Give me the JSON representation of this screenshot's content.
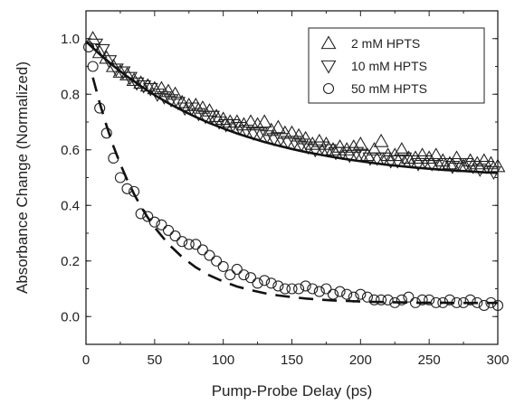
{
  "chart_data": {
    "type": "scatter",
    "title": "",
    "xlabel": "Pump-Probe Delay (ps)",
    "ylabel": "Absorbance Change (Normalized)",
    "xlim": [
      0,
      300
    ],
    "ylim": [
      -0.1,
      1.1
    ],
    "xticks": [
      0,
      50,
      100,
      150,
      200,
      250,
      300
    ],
    "yticks": [
      0.0,
      0.2,
      0.4,
      0.6,
      0.8,
      1.0
    ],
    "grid": false,
    "legend_position": "top-right",
    "legend": [
      {
        "label": "2 mM HPTS",
        "marker": "triangle-up"
      },
      {
        "label": "10 mM HPTS",
        "marker": "triangle-down"
      },
      {
        "label": "50 mM HPTS",
        "marker": "circle"
      }
    ],
    "series": [
      {
        "name": "2 mM HPTS",
        "marker": "triangle-up",
        "x": [
          5,
          10,
          15,
          20,
          25,
          30,
          35,
          40,
          45,
          50,
          55,
          60,
          65,
          70,
          75,
          80,
          85,
          90,
          95,
          100,
          105,
          110,
          115,
          120,
          125,
          130,
          135,
          140,
          145,
          150,
          155,
          160,
          165,
          170,
          175,
          180,
          185,
          190,
          195,
          200,
          205,
          210,
          215,
          220,
          225,
          230,
          235,
          240,
          245,
          250,
          255,
          260,
          265,
          270,
          275,
          280,
          285,
          290,
          295,
          300
        ],
        "y": [
          1.0,
          0.95,
          0.93,
          0.9,
          0.88,
          0.87,
          0.85,
          0.84,
          0.83,
          0.82,
          0.82,
          0.81,
          0.8,
          0.77,
          0.76,
          0.76,
          0.75,
          0.74,
          0.72,
          0.71,
          0.7,
          0.7,
          0.69,
          0.7,
          0.69,
          0.7,
          0.67,
          0.68,
          0.66,
          0.66,
          0.65,
          0.64,
          0.62,
          0.63,
          0.62,
          0.6,
          0.61,
          0.6,
          0.61,
          0.62,
          0.58,
          0.6,
          0.63,
          0.58,
          0.58,
          0.6,
          0.57,
          0.57,
          0.58,
          0.57,
          0.58,
          0.56,
          0.55,
          0.57,
          0.54,
          0.56,
          0.55,
          0.56,
          0.55,
          0.54
        ]
      },
      {
        "name": "10 mM HPTS",
        "marker": "triangle-down",
        "x": [
          7,
          12,
          17,
          22,
          27,
          32,
          37,
          42,
          47,
          52,
          57,
          62,
          67,
          72,
          77,
          82,
          87,
          92,
          97,
          102,
          107,
          112,
          117,
          122,
          127,
          132,
          137,
          142,
          147,
          152,
          157,
          162,
          167,
          172,
          177,
          182,
          187,
          192,
          197,
          202,
          207,
          212,
          217,
          222,
          227,
          232,
          237,
          242,
          247,
          252,
          257,
          262,
          267,
          272,
          277,
          282,
          287,
          292,
          297
        ],
        "y": [
          0.98,
          0.96,
          0.92,
          0.89,
          0.88,
          0.86,
          0.84,
          0.83,
          0.82,
          0.8,
          0.79,
          0.78,
          0.77,
          0.75,
          0.75,
          0.73,
          0.72,
          0.72,
          0.7,
          0.69,
          0.69,
          0.68,
          0.67,
          0.66,
          0.66,
          0.65,
          0.64,
          0.64,
          0.63,
          0.63,
          0.62,
          0.61,
          0.6,
          0.61,
          0.6,
          0.59,
          0.59,
          0.58,
          0.59,
          0.58,
          0.57,
          0.57,
          0.57,
          0.56,
          0.56,
          0.57,
          0.56,
          0.55,
          0.56,
          0.55,
          0.55,
          0.55,
          0.54,
          0.55,
          0.55,
          0.54,
          0.53,
          0.54,
          0.52
        ]
      },
      {
        "name": "50 mM HPTS",
        "marker": "circle",
        "x": [
          2,
          5,
          10,
          15,
          20,
          25,
          30,
          35,
          40,
          45,
          50,
          55,
          60,
          65,
          70,
          75,
          80,
          85,
          90,
          95,
          100,
          105,
          110,
          115,
          120,
          125,
          130,
          135,
          140,
          145,
          150,
          155,
          160,
          165,
          170,
          175,
          180,
          185,
          190,
          195,
          200,
          205,
          210,
          215,
          220,
          225,
          230,
          235,
          240,
          245,
          250,
          255,
          260,
          265,
          270,
          275,
          280,
          285,
          290,
          295,
          300
        ],
        "y": [
          0.97,
          0.9,
          0.75,
          0.66,
          0.57,
          0.5,
          0.46,
          0.45,
          0.37,
          0.36,
          0.34,
          0.33,
          0.31,
          0.29,
          0.27,
          0.26,
          0.26,
          0.24,
          0.22,
          0.2,
          0.18,
          0.15,
          0.17,
          0.15,
          0.14,
          0.12,
          0.13,
          0.12,
          0.11,
          0.1,
          0.1,
          0.1,
          0.11,
          0.1,
          0.09,
          0.1,
          0.08,
          0.09,
          0.08,
          0.07,
          0.08,
          0.07,
          0.06,
          0.06,
          0.06,
          0.05,
          0.06,
          0.07,
          0.05,
          0.06,
          0.06,
          0.05,
          0.05,
          0.06,
          0.05,
          0.05,
          0.06,
          0.05,
          0.04,
          0.05,
          0.04
        ]
      }
    ],
    "fits": [
      {
        "style": "solid",
        "x": [
          0,
          10,
          20,
          30,
          40,
          50,
          60,
          70,
          80,
          90,
          100,
          110,
          120,
          130,
          140,
          150,
          160,
          170,
          180,
          190,
          200,
          210,
          220,
          230,
          240,
          250,
          260,
          270,
          280,
          290,
          300
        ],
        "y": [
          0.99,
          0.944,
          0.902,
          0.864,
          0.829,
          0.797,
          0.768,
          0.742,
          0.718,
          0.696,
          0.677,
          0.659,
          0.643,
          0.628,
          0.615,
          0.603,
          0.592,
          0.583,
          0.574,
          0.566,
          0.559,
          0.552,
          0.546,
          0.541,
          0.536,
          0.532,
          0.528,
          0.525,
          0.522,
          0.519,
          0.517
        ]
      },
      {
        "style": "dashed",
        "x": [
          5,
          10,
          15,
          20,
          25,
          30,
          35,
          40,
          45,
          50,
          60,
          70,
          80,
          90,
          100,
          110,
          120,
          130,
          140,
          150,
          160,
          170,
          180,
          190,
          200,
          210,
          220,
          230,
          240,
          250,
          260,
          270,
          280,
          290,
          300
        ],
        "y": [
          0.86,
          0.768,
          0.686,
          0.613,
          0.549,
          0.492,
          0.441,
          0.396,
          0.356,
          0.321,
          0.261,
          0.214,
          0.177,
          0.148,
          0.126,
          0.108,
          0.095,
          0.084,
          0.076,
          0.07,
          0.065,
          0.061,
          0.058,
          0.056,
          0.054,
          0.053,
          0.052,
          0.051,
          0.05,
          0.05,
          0.05,
          0.049,
          0.049,
          0.049,
          0.049
        ]
      }
    ]
  }
}
